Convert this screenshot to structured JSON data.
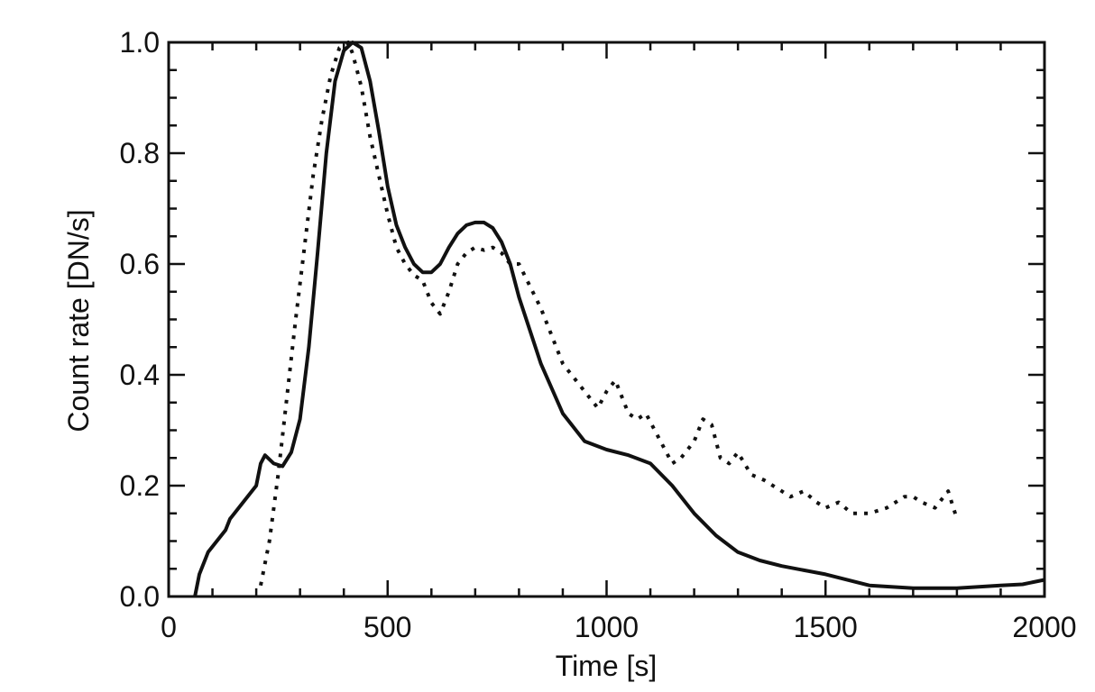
{
  "chart_data": {
    "type": "line",
    "title": "",
    "xlabel": "Time [s]",
    "ylabel": "Count rate [DN/s]",
    "xlim": [
      0,
      2000
    ],
    "ylim": [
      0.0,
      1.0
    ],
    "x_ticks": [
      "0",
      "500",
      "1000",
      "1500",
      "2000"
    ],
    "y_ticks": [
      "0.0",
      "0.2",
      "0.4",
      "0.6",
      "0.8",
      "1.0"
    ],
    "grid": false,
    "legend": "none",
    "series": [
      {
        "style": "solid",
        "color": "#111111",
        "x": [
          60,
          70,
          90,
          110,
          130,
          140,
          170,
          200,
          210,
          220,
          240,
          260,
          280,
          300,
          320,
          340,
          360,
          380,
          400,
          420,
          440,
          460,
          480,
          500,
          520,
          540,
          560,
          580,
          600,
          620,
          640,
          660,
          680,
          700,
          720,
          740,
          760,
          780,
          800,
          850,
          900,
          950,
          1000,
          1050,
          1100,
          1150,
          1200,
          1250,
          1300,
          1350,
          1400,
          1500,
          1600,
          1700,
          1800,
          1900,
          1950,
          2000
        ],
        "y": [
          0.0,
          0.04,
          0.08,
          0.1,
          0.12,
          0.14,
          0.17,
          0.2,
          0.24,
          0.255,
          0.24,
          0.235,
          0.26,
          0.32,
          0.45,
          0.62,
          0.8,
          0.93,
          0.985,
          1.0,
          0.99,
          0.93,
          0.84,
          0.74,
          0.67,
          0.63,
          0.6,
          0.585,
          0.585,
          0.6,
          0.63,
          0.655,
          0.67,
          0.675,
          0.675,
          0.665,
          0.64,
          0.6,
          0.54,
          0.42,
          0.33,
          0.28,
          0.265,
          0.255,
          0.24,
          0.2,
          0.15,
          0.11,
          0.08,
          0.065,
          0.055,
          0.04,
          0.02,
          0.015,
          0.015,
          0.02,
          0.022,
          0.03
        ]
      },
      {
        "style": "dotted",
        "color": "#111111",
        "x": [
          210,
          230,
          250,
          270,
          290,
          310,
          330,
          350,
          370,
          390,
          410,
          420,
          440,
          460,
          480,
          500,
          520,
          540,
          560,
          580,
          600,
          620,
          640,
          660,
          680,
          700,
          720,
          740,
          760,
          780,
          800,
          850,
          900,
          950,
          980,
          1000,
          1020,
          1050,
          1070,
          1090,
          1110,
          1130,
          1150,
          1170,
          1200,
          1220,
          1240,
          1260,
          1280,
          1300,
          1330,
          1360,
          1400,
          1420,
          1450,
          1480,
          1500,
          1530,
          1560,
          1600,
          1640,
          1680,
          1700,
          1720,
          1750,
          1780,
          1800
        ],
        "y": [
          0.02,
          0.1,
          0.22,
          0.36,
          0.5,
          0.63,
          0.76,
          0.86,
          0.94,
          0.99,
          1.0,
          0.98,
          0.92,
          0.83,
          0.76,
          0.69,
          0.63,
          0.6,
          0.58,
          0.57,
          0.53,
          0.51,
          0.55,
          0.6,
          0.62,
          0.63,
          0.625,
          0.63,
          0.62,
          0.6,
          0.6,
          0.52,
          0.42,
          0.37,
          0.34,
          0.37,
          0.39,
          0.33,
          0.32,
          0.33,
          0.3,
          0.27,
          0.24,
          0.25,
          0.28,
          0.32,
          0.31,
          0.25,
          0.24,
          0.26,
          0.22,
          0.21,
          0.19,
          0.18,
          0.19,
          0.17,
          0.16,
          0.17,
          0.15,
          0.15,
          0.16,
          0.18,
          0.18,
          0.17,
          0.16,
          0.19,
          0.14
        ]
      }
    ]
  }
}
